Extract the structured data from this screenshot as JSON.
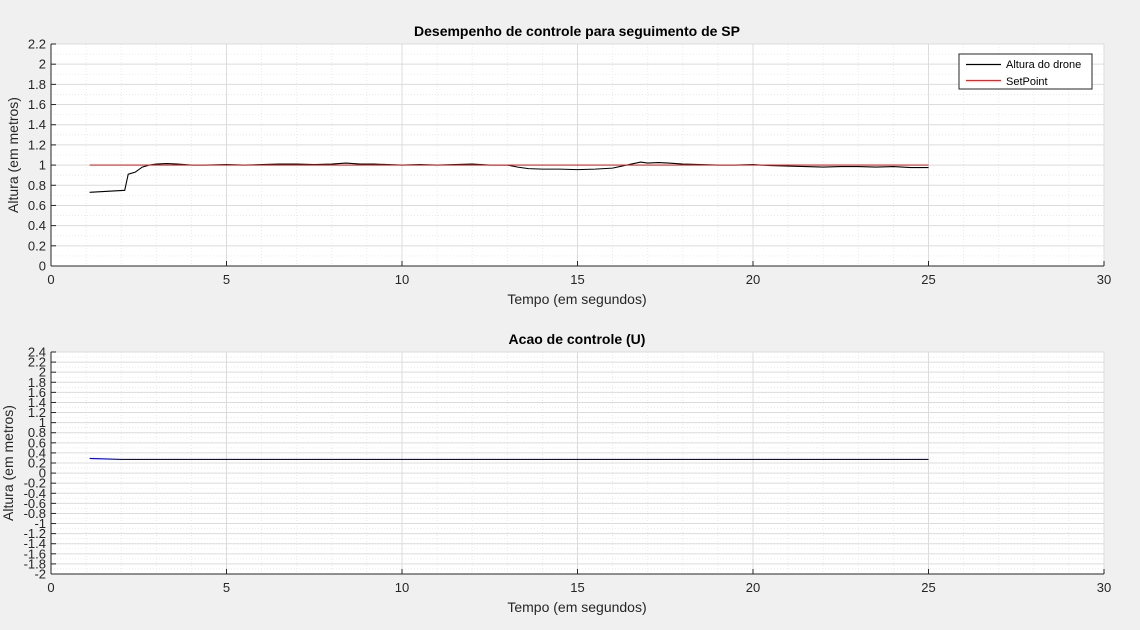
{
  "chart_data": [
    {
      "type": "line",
      "title": "Desempenho de controle para seguimento de SP",
      "xlabel": "Tempo (em segundos)",
      "ylabel": "Altura (em metros)",
      "xlim": [
        0,
        30
      ],
      "ylim": [
        0,
        2.2
      ],
      "xticks": [
        0,
        5,
        10,
        15,
        20,
        25,
        30
      ],
      "yticks": [
        0,
        0.2,
        0.4,
        0.6,
        0.8,
        1,
        1.2,
        1.4,
        1.6,
        1.8,
        2,
        2.2
      ],
      "grid": true,
      "minor_grid": true,
      "legend": "top-right",
      "series": [
        {
          "name": "Altura do drone",
          "color": "#000000",
          "x": [
            1.1,
            2.1,
            2.2,
            2.4,
            2.6,
            2.8,
            3.0,
            3.3,
            3.6,
            4.0,
            4.4,
            5.0,
            5.5,
            6.0,
            6.5,
            7.0,
            7.5,
            8.0,
            8.4,
            8.8,
            9.2,
            9.6,
            10.0,
            10.5,
            11.0,
            11.5,
            12.0,
            12.5,
            13.0,
            13.3,
            13.6,
            14.0,
            14.5,
            15.0,
            15.5,
            16.0,
            16.4,
            16.8,
            17.0,
            17.3,
            17.6,
            18.0,
            18.5,
            19.0,
            19.5,
            20.0,
            20.5,
            21.0,
            21.5,
            22.0,
            22.5,
            23.0,
            23.5,
            24.0,
            24.5,
            25.0
          ],
          "y": [
            0.73,
            0.75,
            0.91,
            0.93,
            0.98,
            1.0,
            1.01,
            1.015,
            1.01,
            1.0,
            1.0,
            1.005,
            1.0,
            1.005,
            1.01,
            1.01,
            1.005,
            1.01,
            1.02,
            1.01,
            1.01,
            1.005,
            1.0,
            1.005,
            1.0,
            1.005,
            1.01,
            1.0,
            1.0,
            0.98,
            0.965,
            0.96,
            0.96,
            0.955,
            0.96,
            0.97,
            1.0,
            1.03,
            1.02,
            1.025,
            1.02,
            1.01,
            1.005,
            1.0,
            1.0,
            1.005,
            0.995,
            0.99,
            0.985,
            0.98,
            0.985,
            0.985,
            0.98,
            0.985,
            0.975,
            0.975
          ]
        },
        {
          "name": "SetPoint",
          "color": "#dd2a2a",
          "x": [
            1.1,
            25.0
          ],
          "y": [
            1.0,
            1.0
          ]
        }
      ]
    },
    {
      "type": "line",
      "title": "Acao de controle (U)",
      "xlabel": "Tempo (em segundos)",
      "ylabel": "Altura (em metros)",
      "xlim": [
        0,
        30
      ],
      "ylim": [
        -2,
        2.4
      ],
      "xticks": [
        0,
        5,
        10,
        15,
        20,
        25,
        30
      ],
      "yticks": [
        -2,
        -1.8,
        -1.6,
        -1.4,
        -1.2,
        -1,
        -0.8,
        -0.6,
        -0.4,
        -0.2,
        0,
        0.2,
        0.4,
        0.6,
        0.8,
        1,
        1.2,
        1.4,
        1.6,
        1.8,
        2,
        2.2,
        2.4
      ],
      "grid": true,
      "minor_grid": true,
      "series": [
        {
          "color": "#0000cc",
          "x": [
            1.1,
            2.0,
            25.0
          ],
          "y": [
            0.29,
            0.27,
            0.27
          ]
        }
      ]
    }
  ]
}
